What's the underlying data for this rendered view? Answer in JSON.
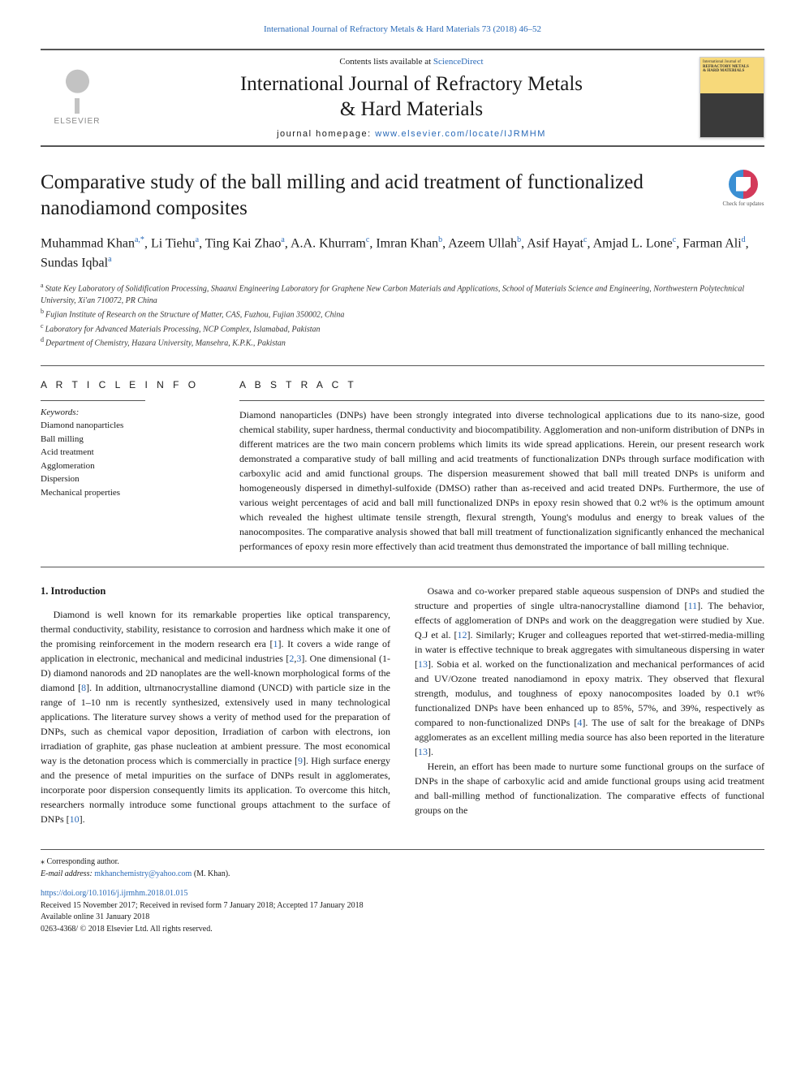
{
  "journal_ref": {
    "text": "International Journal of Refractory Metals & Hard Materials 73 (2018) 46–52",
    "link_text": "International Journal of Refractory Metals & Hard Materials 73 (2018) 46–52"
  },
  "header": {
    "publisher_name": "ELSEVIER",
    "contents_prefix": "Contents lists available at ",
    "contents_link": "ScienceDirect",
    "journal_title_line1": "International Journal of Refractory Metals",
    "journal_title_line2": "& Hard Materials",
    "homepage_prefix": "journal homepage: ",
    "homepage_link": "www.elsevier.com/locate/IJRMHM",
    "cover_text1": "International Journal of",
    "cover_text2": "REFRACTORY METALS",
    "cover_text3": "& HARD MATERIALS"
  },
  "check_updates_label": "Check for updates",
  "article": {
    "title": "Comparative study of the ball milling and acid treatment of functionalized nanodiamond composites",
    "authors_html": "Muhammad Khan<sup>a,*</sup>, Li Tiehu<sup>a</sup>, Ting Kai Zhao<sup>a</sup>, A.A. Khurram<sup>c</sup>, Imran Khan<sup>b</sup>, Azeem Ullah<sup>b</sup>, Asif Hayat<sup>c</sup>, Amjad L. Lone<sup>c</sup>, Farman Ali<sup>d</sup>, Sundas Iqbal<sup>a</sup>",
    "affiliations": [
      {
        "sup": "a",
        "text": "State Key Laboratory of Solidification Processing, Shaanxi Engineering Laboratory for Graphene New Carbon Materials and Applications, School of Materials Science and Engineering, Northwestern Polytechnical University, Xi'an 710072, PR China"
      },
      {
        "sup": "b",
        "text": "Fujian Institute of Research on the Structure of Matter, CAS, Fuzhou, Fujian 350002, China"
      },
      {
        "sup": "c",
        "text": "Laboratory for Advanced Materials Processing, NCP Complex, Islamabad, Pakistan"
      },
      {
        "sup": "d",
        "text": "Department of Chemistry, Hazara University, Mansehra, K.P.K., Pakistan"
      }
    ]
  },
  "article_info": {
    "heading": "A R T I C L E  I N F O",
    "keywords_label": "Keywords:",
    "keywords": [
      "Diamond nanoparticles",
      "Ball milling",
      "Acid treatment",
      "Agglomeration",
      "Dispersion",
      "Mechanical properties"
    ]
  },
  "abstract": {
    "heading": "A B S T R A C T",
    "text": "Diamond nanoparticles (DNPs) have been strongly integrated into diverse technological applications due to its nano-size, good chemical stability, super hardness, thermal conductivity and biocompatibility. Agglomeration and non-uniform distribution of DNPs in different matrices are the two main concern problems which limits its wide spread applications. Herein, our present research work demonstrated a comparative study of ball milling and acid treatments of functionalization DNPs through surface modification with carboxylic acid and amid functional groups. The dispersion measurement showed that ball mill treated DNPs is uniform and homogeneously dispersed in dimethyl-sulfoxide (DMSO) rather than as-received and acid treated DNPs. Furthermore, the use of various weight percentages of acid and ball mill functionalized DNPs in epoxy resin showed that 0.2 wt% is the optimum amount which revealed the highest ultimate tensile strength, flexural strength, Young's modulus and energy to break values of the nanocomposites. The comparative analysis showed that ball mill treatment of functionalization significantly enhanced the mechanical performances of epoxy resin more effectively than acid treatment thus demonstrated the importance of ball milling technique."
  },
  "body": {
    "section_heading": "1. Introduction",
    "p1": "Diamond is well known for its remarkable properties like optical transparency, thermal conductivity, stability, resistance to corrosion and hardness which make it one of the promising reinforcement in the modern research era [",
    "p1_ref1": "1",
    "p1_mid1": "]. It covers a wide range of application in electronic, mechanical and medicinal industries [",
    "p1_ref2": "2",
    "p1_ref2b": "3",
    "p1_mid2": "]. One dimensional (1-D) diamond nanorods and 2D nanoplates are the well-known morphological forms of the diamond [",
    "p1_ref3": "8",
    "p1_mid3": "]. In addition, ultrnanocrystalline diamond (UNCD) with particle size in the range of 1–10 nm is recently synthesized, extensively used in many technological applications. The literature survey shows a verity of method used for the preparation of DNPs, such as chemical vapor deposition, Irradiation of carbon with electrons, ion irradiation of graphite, gas phase nucleation at ambient pressure. The most economical way is the detonation process which is commercially in practice [",
    "p1_ref4": "9",
    "p1_mid4": "]. High surface energy and the presence of metal impurities on the surface of DNPs result in agglomerates, incorporate poor dispersion consequently limits its application. To overcome this hitch, researchers normally introduce some functional groups ",
    "p1_tail": "attachment to the surface of DNPs [",
    "p1_ref5": "10",
    "p1_end": "].",
    "p2_a": "Osawa and co-worker prepared stable aqueous suspension of DNPs and studied the structure and properties of single ultra-nanocrystalline diamond [",
    "p2_ref1": "11",
    "p2_b": "]. The behavior, effects of agglomeration of DNPs and work on the deaggregation were studied by Xue. Q.J et al. [",
    "p2_ref2": "12",
    "p2_c": "]. Similarly; Kruger and colleagues reported that wet-stirred-media-milling in water is effective technique to break aggregates with simultaneous dispersing in water [",
    "p2_ref3": "13",
    "p2_d": "]. Sobia et al. worked on the functionalization and mechanical performances of acid and UV/Ozone treated nanodiamond in epoxy matrix. They observed that flexural strength, modulus, and toughness of epoxy nanocomposites loaded by 0.1 wt% functionalized DNPs have been enhanced up to 85%, 57%, and 39%, respectively as compared to non-functionalized DNPs [",
    "p2_ref4": "4",
    "p2_e": "]. The use of salt for the breakage of DNPs agglomerates as an excellent milling media source has also been reported in the literature [",
    "p2_ref5": "13",
    "p2_f": "].",
    "p3": "Herein, an effort has been made to nurture some functional groups on the surface of DNPs in the shape of carboxylic acid and amide functional groups using acid treatment and ball-milling method of functionalization. The comparative effects of functional groups on the"
  },
  "footer": {
    "corr_label": "⁎ Corresponding author.",
    "email_label": "E-mail address: ",
    "email": "mkhanchemistry@yahoo.com",
    "email_suffix": " (M. Khan).",
    "doi": "https://doi.org/10.1016/j.ijrmhm.2018.01.015",
    "received": "Received 15 November 2017; Received in revised form 7 January 2018; Accepted 17 January 2018",
    "available": "Available online 31 January 2018",
    "copyright": "0263-4368/ © 2018 Elsevier Ltd. All rights reserved."
  },
  "colors": {
    "link": "#2a6ab8",
    "rule": "#555555",
    "text": "#1a1a1a"
  }
}
